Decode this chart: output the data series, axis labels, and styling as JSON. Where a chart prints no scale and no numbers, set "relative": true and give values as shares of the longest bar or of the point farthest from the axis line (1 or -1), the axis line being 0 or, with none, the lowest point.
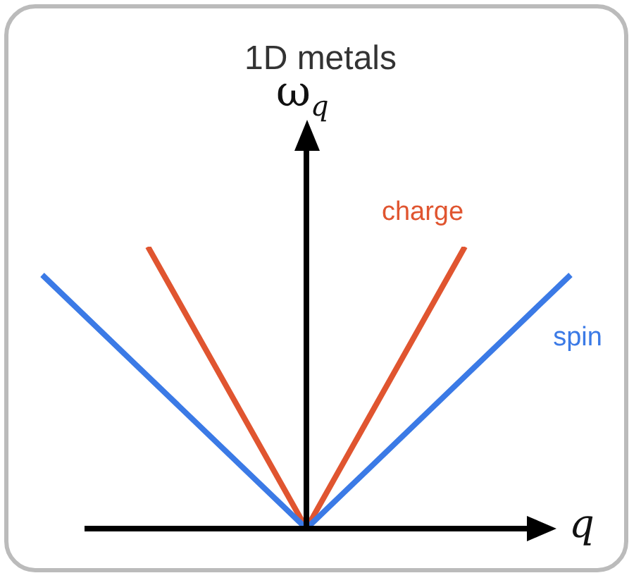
{
  "chart_data": {
    "type": "line",
    "title": "1D metals",
    "xlabel": "q",
    "ylabel": "ω$_{q}$",
    "relative": true,
    "legend": false,
    "marker": "none",
    "line_style": "solid",
    "categories": [
      null,
      null,
      null,
      null,
      null,
      null,
      null,
      null,
      null,
      null,
      null
    ],
    "series": [
      {
        "name": "spin",
        "color": "#3b7ae6",
        "values": [
          0.9,
          null,
          null,
          null,
          null,
          0,
          null,
          null,
          null,
          null,
          0.9
        ]
      },
      {
        "name": "charge",
        "color": "#e05530",
        "values": [
          null,
          null,
          1,
          null,
          null,
          0,
          null,
          null,
          1,
          null,
          null
        ]
      }
    ]
  }
}
